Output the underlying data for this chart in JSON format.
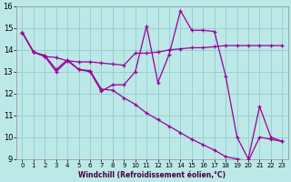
{
  "xlabel": "Windchill (Refroidissement éolien,°C)",
  "xlim_min": -0.5,
  "xlim_max": 23.5,
  "ylim_min": 9,
  "ylim_max": 16,
  "xticks": [
    0,
    1,
    2,
    3,
    4,
    5,
    6,
    7,
    8,
    9,
    10,
    11,
    12,
    13,
    14,
    15,
    16,
    17,
    18,
    19,
    20,
    21,
    22,
    23
  ],
  "yticks": [
    9,
    10,
    11,
    12,
    13,
    14,
    15,
    16
  ],
  "bg_color": "#bde8e8",
  "line_color": "#990099",
  "grid_color": "#98d0d0",
  "line1_y": [
    14.8,
    13.9,
    13.7,
    13.0,
    13.5,
    13.1,
    13.0,
    12.1,
    12.4,
    12.4,
    13.0,
    15.1,
    12.5,
    13.8,
    15.8,
    14.9,
    14.9,
    14.85,
    12.8,
    10.0,
    9.0,
    11.4,
    10.0,
    9.8
  ],
  "line2_y": [
    14.8,
    13.9,
    13.7,
    13.65,
    13.5,
    13.45,
    13.45,
    13.4,
    13.35,
    13.3,
    13.85,
    13.85,
    13.9,
    14.0,
    14.05,
    14.1,
    14.1,
    14.15,
    14.2,
    14.2,
    14.2,
    14.2,
    14.2,
    14.2
  ],
  "line3_y": [
    14.8,
    13.9,
    13.75,
    13.1,
    13.55,
    13.1,
    13.05,
    12.2,
    12.15,
    11.8,
    11.5,
    11.1,
    10.8,
    10.5,
    10.2,
    9.9,
    9.65,
    9.4,
    9.1,
    9.0,
    8.9,
    10.0,
    9.9,
    9.8
  ]
}
